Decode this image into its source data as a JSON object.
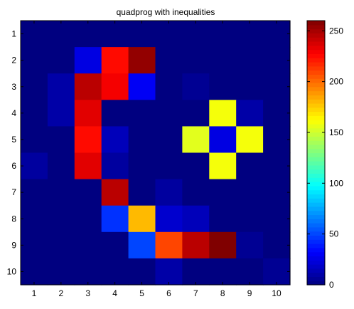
{
  "chart_data": {
    "type": "heatmap",
    "title": "quadprog with inequalities",
    "xlabel": "",
    "ylabel": "",
    "x_ticks": [
      "1",
      "2",
      "3",
      "4",
      "5",
      "6",
      "7",
      "8",
      "9",
      "10"
    ],
    "y_ticks": [
      "1",
      "2",
      "3",
      "4",
      "5",
      "6",
      "7",
      "8",
      "9",
      "10"
    ],
    "colormap": "jet",
    "clim": [
      0,
      260
    ],
    "colorbar_ticks": [
      "0",
      "50",
      "100",
      "150",
      "200",
      "250"
    ],
    "colorbar_tick_values": [
      0,
      50,
      100,
      150,
      200,
      250
    ],
    "grid": false,
    "matrix": [
      [
        0,
        0,
        0,
        0,
        0,
        0,
        0,
        0,
        0,
        0
      ],
      [
        0,
        0,
        25,
        225,
        255,
        0,
        0,
        0,
        0,
        0
      ],
      [
        0,
        10,
        245,
        230,
        30,
        0,
        5,
        0,
        0,
        0
      ],
      [
        0,
        10,
        235,
        0,
        0,
        0,
        0,
        160,
        10,
        0
      ],
      [
        0,
        0,
        225,
        15,
        0,
        0,
        155,
        25,
        160,
        0
      ],
      [
        8,
        0,
        235,
        8,
        0,
        0,
        0,
        160,
        0,
        0
      ],
      [
        0,
        0,
        0,
        245,
        0,
        8,
        0,
        0,
        0,
        0
      ],
      [
        0,
        0,
        0,
        45,
        180,
        20,
        15,
        0,
        0,
        0
      ],
      [
        0,
        0,
        0,
        0,
        50,
        210,
        245,
        265,
        5,
        0
      ],
      [
        0,
        0,
        0,
        0,
        0,
        10,
        0,
        0,
        0,
        5
      ]
    ]
  }
}
